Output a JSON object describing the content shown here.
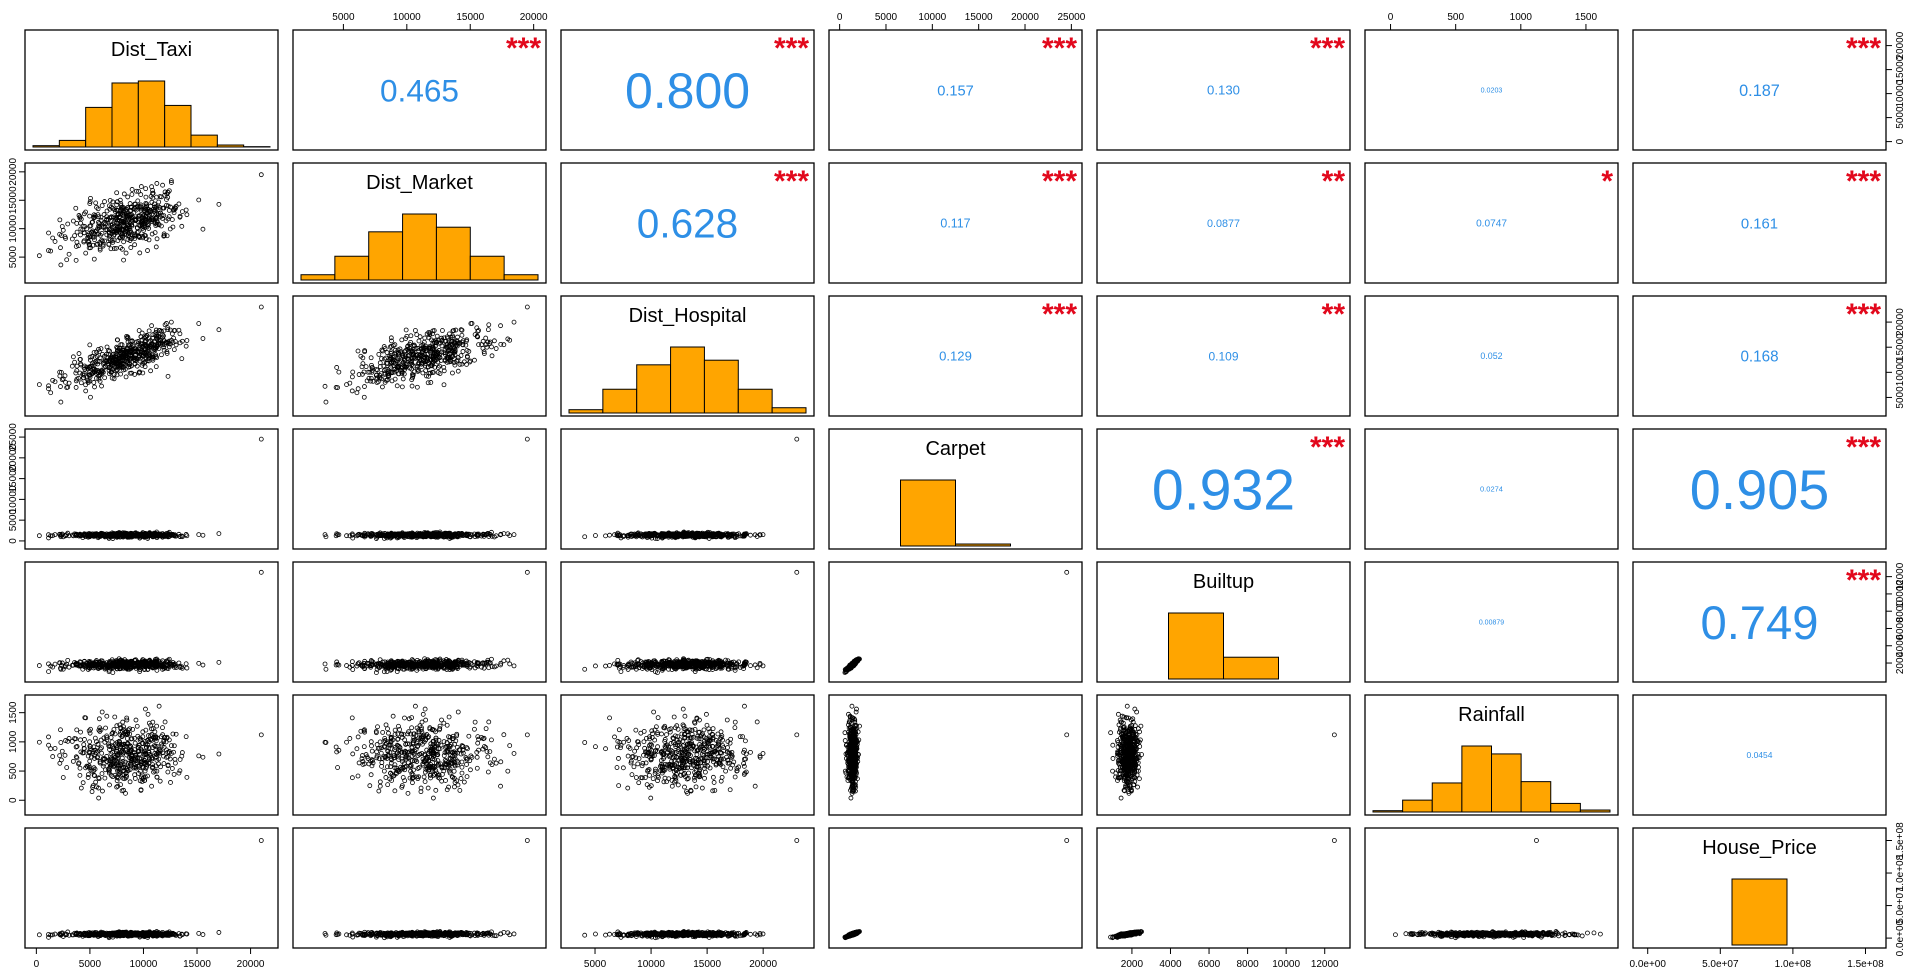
{
  "chart_data": {
    "type": "scatter-matrix",
    "colors": {
      "histogram_fill": "#ffa500",
      "correlation_text": "#2e8fe6",
      "significance_stars": "#e2081c"
    },
    "variables": [
      {
        "name": "Dist_Taxi",
        "ticks": [
          0,
          5000,
          10000,
          15000,
          20000
        ],
        "histogram": [
          0.02,
          0.1,
          0.6,
          0.97,
          1.0,
          0.63,
          0.18,
          0.03,
          0.005
        ]
      },
      {
        "name": "Dist_Market",
        "ticks": [
          5000,
          10000,
          15000,
          20000
        ],
        "histogram": [
          0.08,
          0.36,
          0.73,
          1.0,
          0.8,
          0.36,
          0.08
        ]
      },
      {
        "name": "Dist_Hospital",
        "ticks": [
          5000,
          10000,
          15000,
          20000
        ],
        "histogram": [
          0.05,
          0.36,
          0.73,
          1.0,
          0.8,
          0.36,
          0.08
        ]
      },
      {
        "name": "Carpet",
        "ticks": [
          0,
          5000,
          10000,
          15000,
          20000,
          25000
        ],
        "histogram": [
          1.0,
          0.03
        ]
      },
      {
        "name": "Builtup",
        "ticks": [
          2000,
          4000,
          6000,
          8000,
          10000,
          12000
        ],
        "histogram": [
          1.0,
          0.33
        ]
      },
      {
        "name": "Rainfall",
        "ticks": [
          0,
          500,
          1000,
          1500
        ],
        "histogram": [
          0.02,
          0.18,
          0.44,
          1.0,
          0.88,
          0.46,
          0.13,
          0.03
        ]
      },
      {
        "name": "House_Price",
        "ticks": [
          "0.0e+00",
          "5.0e+07",
          "1.0e+08",
          "1.5e+08"
        ],
        "histogram": [
          1.0
        ]
      }
    ],
    "correlations": [
      {
        "row": 0,
        "col": 1,
        "value": "0.465",
        "stars": "***"
      },
      {
        "row": 0,
        "col": 2,
        "value": "0.800",
        "stars": "***"
      },
      {
        "row": 0,
        "col": 3,
        "value": "0.157",
        "stars": "***"
      },
      {
        "row": 0,
        "col": 4,
        "value": "0.130",
        "stars": "***"
      },
      {
        "row": 0,
        "col": 5,
        "value": "0.0203",
        "stars": ""
      },
      {
        "row": 0,
        "col": 6,
        "value": "0.187",
        "stars": "***"
      },
      {
        "row": 1,
        "col": 2,
        "value": "0.628",
        "stars": "***"
      },
      {
        "row": 1,
        "col": 3,
        "value": "0.117",
        "stars": "***"
      },
      {
        "row": 1,
        "col": 4,
        "value": "0.0877",
        "stars": "**"
      },
      {
        "row": 1,
        "col": 5,
        "value": "0.0747",
        "stars": "*"
      },
      {
        "row": 1,
        "col": 6,
        "value": "0.161",
        "stars": "***"
      },
      {
        "row": 2,
        "col": 3,
        "value": "0.129",
        "stars": "***"
      },
      {
        "row": 2,
        "col": 4,
        "value": "0.109",
        "stars": "**"
      },
      {
        "row": 2,
        "col": 5,
        "value": "0.052",
        "stars": ""
      },
      {
        "row": 2,
        "col": 6,
        "value": "0.168",
        "stars": "***"
      },
      {
        "row": 3,
        "col": 4,
        "value": "0.932",
        "stars": "***"
      },
      {
        "row": 3,
        "col": 5,
        "value": "0.0274",
        "stars": ""
      },
      {
        "row": 3,
        "col": 6,
        "value": "0.905",
        "stars": "***"
      },
      {
        "row": 4,
        "col": 5,
        "value": "0.00879",
        "stars": ""
      },
      {
        "row": 4,
        "col": 6,
        "value": "0.749",
        "stars": "***"
      },
      {
        "row": 5,
        "col": 6,
        "value": "0.0454",
        "stars": ""
      }
    ]
  }
}
